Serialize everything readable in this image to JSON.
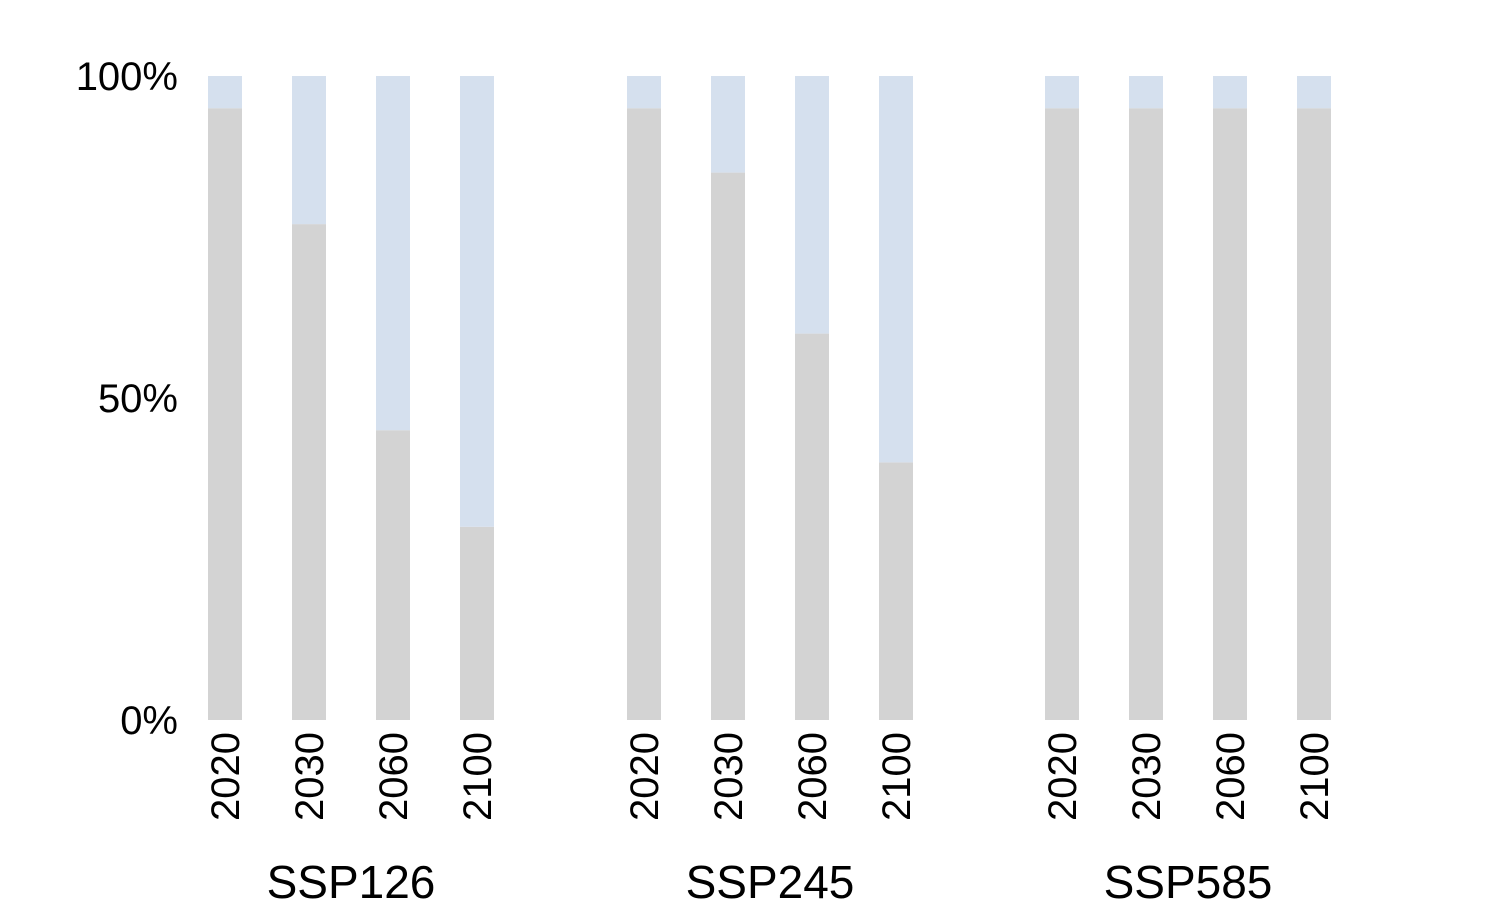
{
  "chart_data": {
    "type": "bar",
    "stacked": true,
    "percent_stacked": true,
    "groups": [
      "SSP126",
      "SSP245",
      "SSP585"
    ],
    "categories": [
      "2020",
      "2030",
      "2060",
      "2100"
    ],
    "series": [
      {
        "color": "#d3d3d3",
        "values": [
          [
            95,
            77,
            45,
            30
          ],
          [
            95,
            85,
            60,
            40
          ],
          [
            95,
            95,
            95,
            95
          ]
        ]
      },
      {
        "color": "#d5e0ee",
        "values": [
          [
            5,
            23,
            55,
            70
          ],
          [
            5,
            15,
            40,
            60
          ],
          [
            5,
            5,
            5,
            5
          ]
        ]
      }
    ],
    "yticks": [
      "0%",
      "50%",
      "100%"
    ],
    "ylim": [
      0,
      100
    ],
    "grid": false,
    "legend": "none"
  }
}
